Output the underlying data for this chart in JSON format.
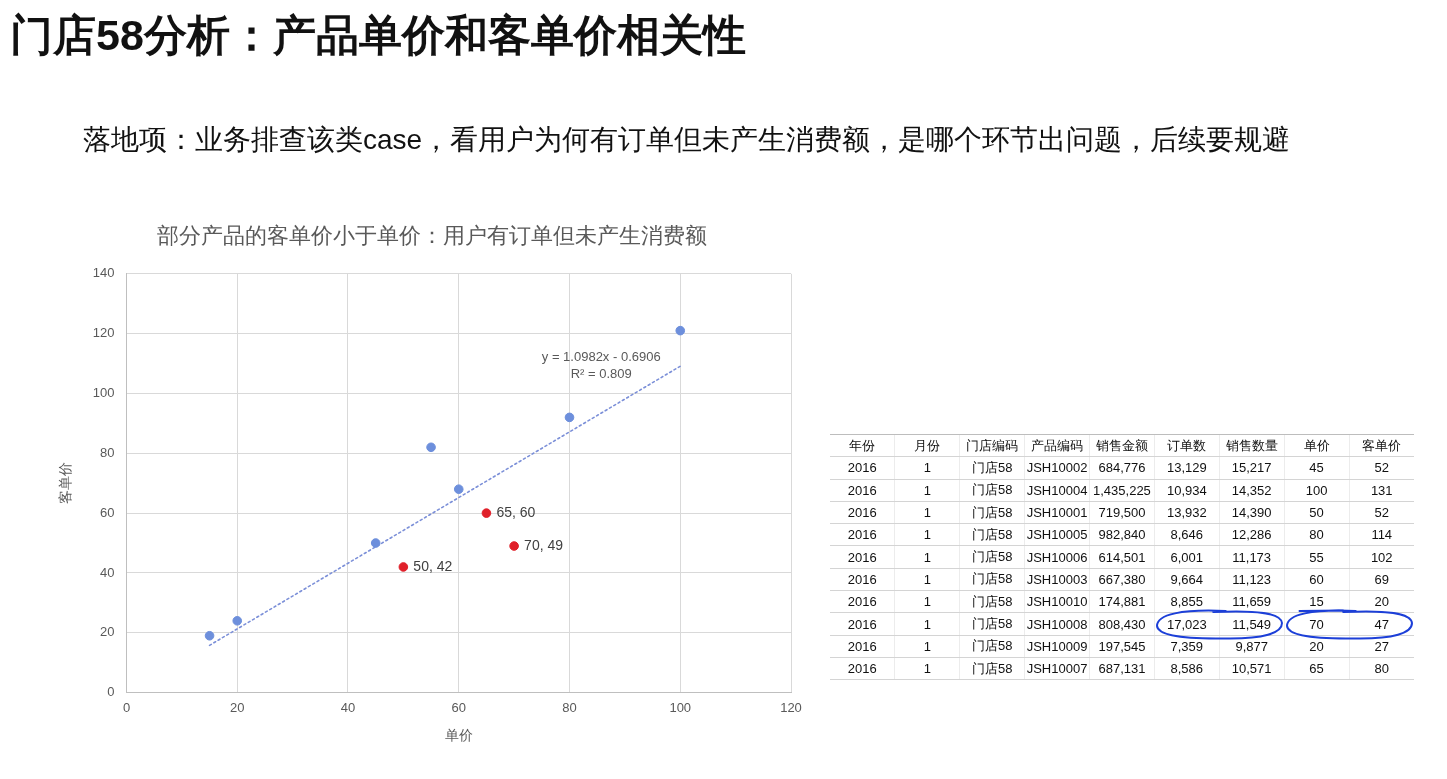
{
  "chart_data": [
    {
      "type": "other",
      "title": "门店58分析：产品单价和客单价相关性",
      "subtitle": "落地项：业务排查该类case，看用户为何有订单但未产生消费额，是哪个环节出问题，后续要规避"
    },
    {
      "type": "scatter",
      "title": "部分产品的客单价小于单价：用户有订单但未产生消费额",
      "xlabel": "单价",
      "ylabel": "客单价",
      "xlim": [
        0,
        120
      ],
      "xticks": [
        0,
        20,
        40,
        60,
        80,
        100,
        120
      ],
      "ylim": [
        0,
        140
      ],
      "yticks": [
        0,
        20,
        40,
        60,
        80,
        100,
        120,
        140
      ],
      "grid": true,
      "marker": "circle",
      "series": [
        {
          "color": "#6d8fdc",
          "x": [
            15,
            20,
            45,
            55,
            60,
            80,
            100
          ],
          "values": [
            19,
            24,
            50,
            82,
            68,
            92,
            121
          ]
        },
        {
          "color": "#e0202a",
          "x": [
            50,
            65,
            70
          ],
          "values": [
            42,
            60,
            49
          ],
          "value_labels": [
            "50, 42",
            "65, 60",
            "70, 49"
          ]
        },
        {
          "type": "line",
          "color": "#7b8fd8",
          "x": [
            15,
            100
          ],
          "values": [
            15.8,
            109.1
          ],
          "line_style": "dotted",
          "marker": "none"
        }
      ],
      "annotations": [
        "y = 1.0982x - 0.6906",
        "R² = 0.809"
      ]
    },
    {
      "type": "other",
      "categories": [
        "年份",
        "月份",
        "门店编码",
        "产品编码",
        "销售金额",
        "订单数",
        "销售数量",
        "单价",
        "客单价"
      ],
      "cell_labels": [
        [
          "2016",
          "1",
          "门店58",
          "JSH10002",
          "684,776",
          "13,129",
          "15,217",
          "45",
          "52"
        ],
        [
          "2016",
          "1",
          "门店58",
          "JSH10004",
          "1,435,225",
          "10,934",
          "14,352",
          "100",
          "131"
        ],
        [
          "2016",
          "1",
          "门店58",
          "JSH10001",
          "719,500",
          "13,932",
          "14,390",
          "50",
          "52"
        ],
        [
          "2016",
          "1",
          "门店58",
          "JSH10005",
          "982,840",
          "8,646",
          "12,286",
          "80",
          "114"
        ],
        [
          "2016",
          "1",
          "门店58",
          "JSH10006",
          "614,501",
          "6,001",
          "11,173",
          "55",
          "102"
        ],
        [
          "2016",
          "1",
          "门店58",
          "JSH10003",
          "667,380",
          "9,664",
          "11,123",
          "60",
          "69"
        ],
        [
          "2016",
          "1",
          "门店58",
          "JSH10010",
          "174,881",
          "8,855",
          "11,659",
          "15",
          "20"
        ],
        [
          "2016",
          "1",
          "门店58",
          "JSH10008",
          "808,430",
          "17,023",
          "11,549",
          "70",
          "47"
        ],
        [
          "2016",
          "1",
          "门店58",
          "JSH10009",
          "197,545",
          "7,359",
          "9,877",
          "20",
          "27"
        ],
        [
          "2016",
          "1",
          "门店58",
          "JSH10007",
          "687,131",
          "8,586",
          "10,571",
          "65",
          "80"
        ]
      ]
    }
  ]
}
